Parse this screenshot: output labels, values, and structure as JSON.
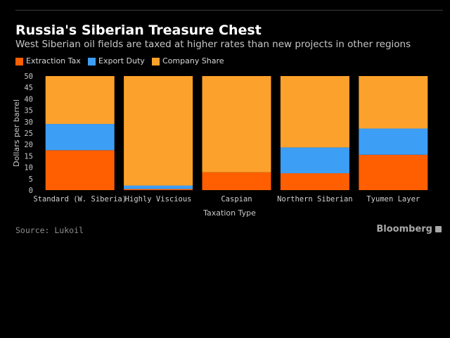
{
  "title": "Russia's Siberian Treasure Chest",
  "subtitle": "West Siberian oil fields are taxed at higher rates than new projects in other regions",
  "legend": [
    {
      "label": "Extraction Tax",
      "color": "#ff5f00"
    },
    {
      "label": "Export Duty",
      "color": "#3d9ef5"
    },
    {
      "label": "Company Share",
      "color": "#fca12b"
    }
  ],
  "source": "Source: Lukoil",
  "brand": "Bloomberg",
  "chart_data": {
    "type": "bar",
    "stacked": true,
    "title": "Russia's Siberian Treasure Chest",
    "subtitle": "West Siberian oil fields are taxed at higher rates than new projects in other regions",
    "xlabel": "Taxation Type",
    "ylabel": "Dollars per barrel",
    "ylim": [
      0,
      50
    ],
    "yticks": [
      0,
      5,
      10,
      15,
      20,
      25,
      30,
      35,
      40,
      45,
      50
    ],
    "grid": false,
    "legend_position": "top-left",
    "categories": [
      "Standard (W. Siberia)",
      "Highly Viscious",
      "Caspian",
      "Northern Siberian",
      "Tyumen Layer"
    ],
    "series": [
      {
        "name": "Extraction Tax",
        "color": "#ff5f00",
        "values": [
          17.5,
          0.5,
          7.8,
          7.4,
          15.5
        ]
      },
      {
        "name": "Export Duty",
        "color": "#3d9ef5",
        "values": [
          11.5,
          1.5,
          0,
          11.3,
          11.5
        ]
      },
      {
        "name": "Company Share",
        "color": "#fca12b",
        "values": [
          21.0,
          48.0,
          42.2,
          31.3,
          23.0
        ]
      }
    ]
  }
}
